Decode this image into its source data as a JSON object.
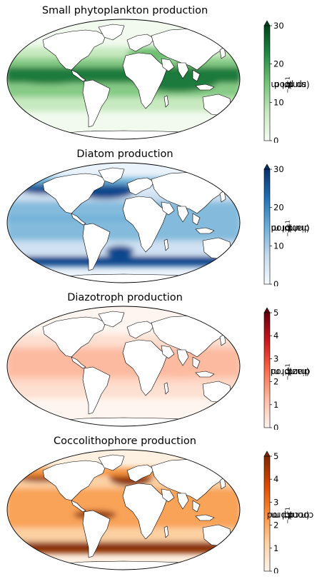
{
  "panels": [
    {
      "title": "Small phytoplankton production",
      "colorbar": {
        "quantity": "sp prod",
        "unit_prefix": "(mmol m",
        "unit_exp1": "−2",
        "unit_mid": " d",
        "unit_exp2": "−1",
        "unit_suffix": ")",
        "min": 0,
        "max": 30,
        "ticks": [
          "0",
          "10",
          "20",
          "30"
        ],
        "extend": "max",
        "colormap": [
          "#f7fcf5",
          "#c7e9c0",
          "#74c476",
          "#238b45",
          "#00441b"
        ]
      },
      "map_colors": {
        "base": "#c7e9c0",
        "high": "#1a7a3c",
        "polar": "#f2faef",
        "mid": "#6fbf72"
      }
    },
    {
      "title": "Diatom production",
      "colorbar": {
        "quantity": "diat prod",
        "unit_prefix": "(mmol m",
        "unit_exp1": "−2",
        "unit_mid": " d",
        "unit_exp2": "−1",
        "unit_suffix": ")",
        "min": 0,
        "max": 30,
        "ticks": [
          "0",
          "10",
          "20",
          "30"
        ],
        "extend": "max",
        "colormap": [
          "#f7fbff",
          "#c6dbef",
          "#6baed6",
          "#2171b5",
          "#08306b"
        ]
      },
      "map_colors": {
        "base": "#cfe1f2",
        "high": "#08468c",
        "polar": "#eaf2fb",
        "mid": "#6baed6"
      }
    },
    {
      "title": "Diazotroph production",
      "colorbar": {
        "quantity": "diaz prod",
        "unit_prefix": "(mmol m",
        "unit_exp1": "−2",
        "unit_mid": " d",
        "unit_exp2": "−1",
        "unit_suffix": ")",
        "min": 0,
        "max": 5,
        "ticks": [
          "0",
          "1",
          "2",
          "3",
          "4",
          "5"
        ],
        "extend": "max",
        "colormap": [
          "#fff5f0",
          "#fcbba1",
          "#fb6a4a",
          "#cb181d",
          "#67000d"
        ]
      },
      "map_colors": {
        "base": "#fde0d2",
        "high": "#fcbba1",
        "polar": "#fff5f0",
        "mid": "#fdd0bc"
      }
    },
    {
      "title": "Coccolithophore production",
      "colorbar": {
        "quantity": "cocco prod",
        "unit_prefix": "(mmol m",
        "unit_exp1": "−2",
        "unit_mid": " d",
        "unit_exp2": "−1",
        "unit_suffix": ")",
        "min": 0,
        "max": 5,
        "ticks": [
          "0",
          "1",
          "2",
          "3",
          "4",
          "5"
        ],
        "extend": "max",
        "colormap": [
          "#fff5eb",
          "#fdd0a2",
          "#fd8d3c",
          "#d94801",
          "#7f2704"
        ]
      },
      "map_colors": {
        "base": "#fdd0a2",
        "high": "#8a2e03",
        "polar": "#fff1e2",
        "mid": "#f7943f"
      }
    }
  ]
}
